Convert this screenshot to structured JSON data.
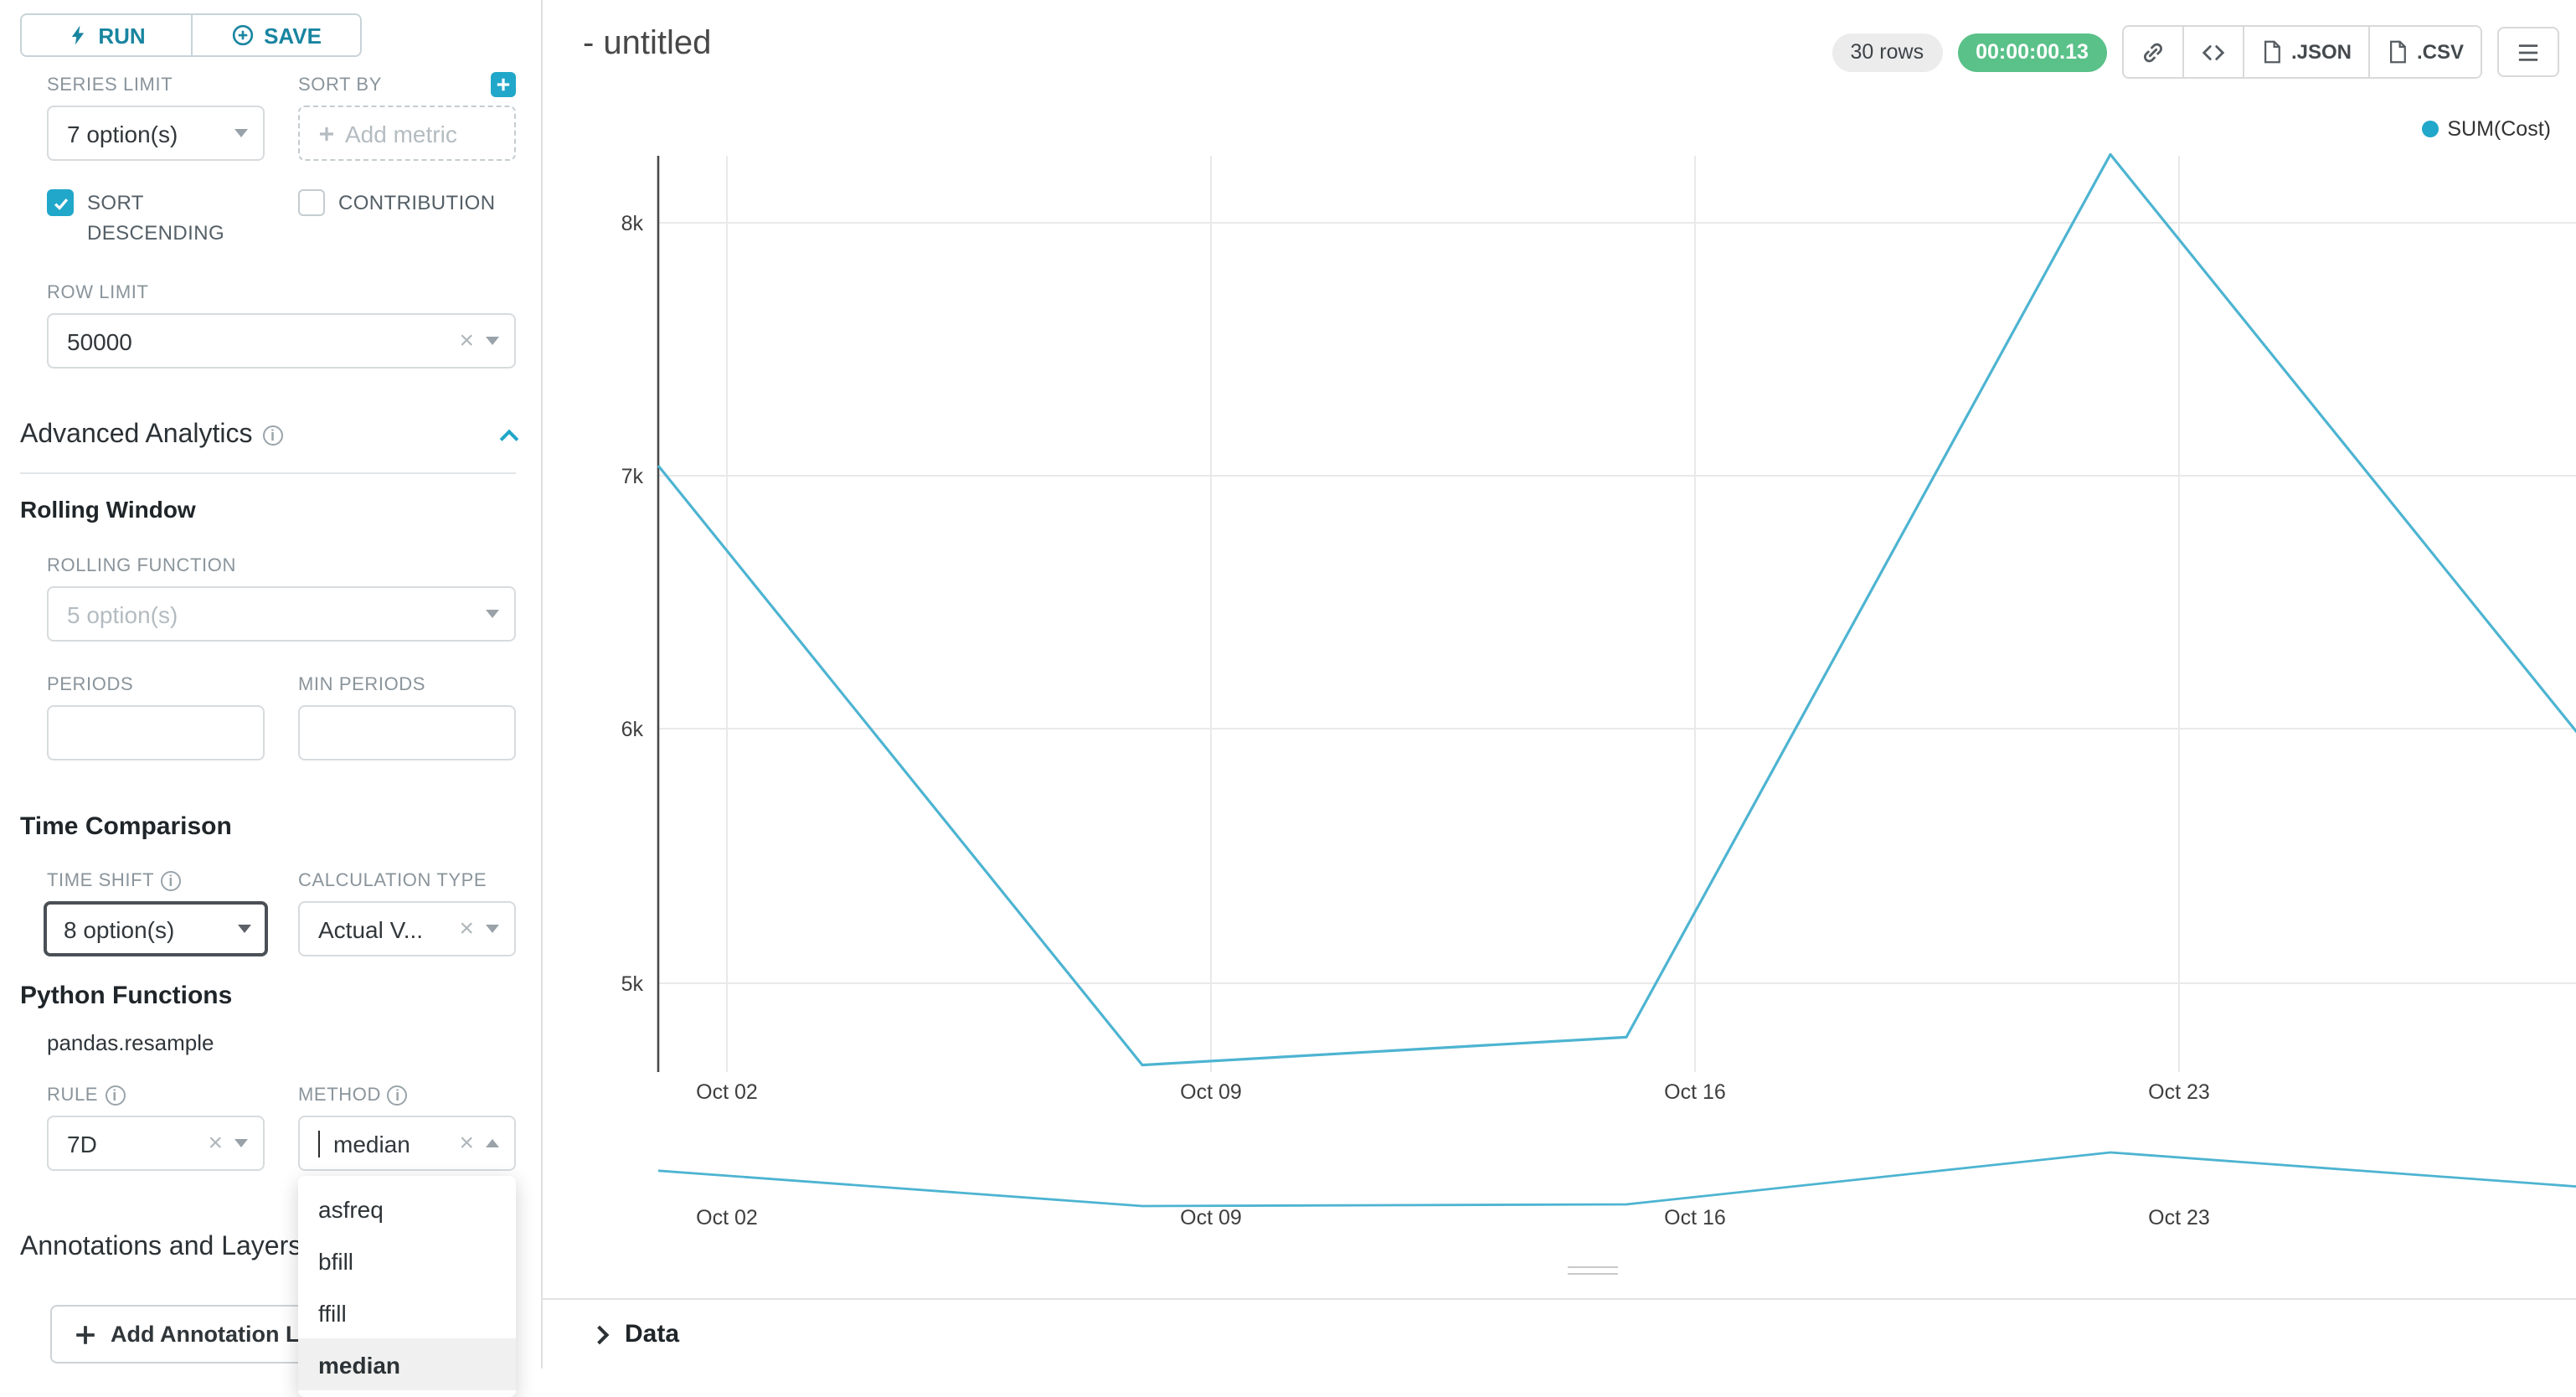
{
  "sidebar": {
    "run_label": "RUN",
    "save_label": "SAVE",
    "series_limit": {
      "label": "SERIES LIMIT",
      "value": "7 option(s)"
    },
    "sort_by": {
      "label": "SORT BY",
      "placeholder": "Add metric"
    },
    "sort_descending_label": "SORT DESCENDING",
    "sort_descending_checked": true,
    "contribution_label": "CONTRIBUTION",
    "contribution_checked": false,
    "row_limit": {
      "label": "ROW LIMIT",
      "value": "50000"
    },
    "advanced_analytics_title": "Advanced Analytics",
    "rolling_window_title": "Rolling Window",
    "rolling_function": {
      "label": "ROLLING FUNCTION",
      "value": "5 option(s)"
    },
    "periods": {
      "label": "PERIODS",
      "value": ""
    },
    "min_periods": {
      "label": "MIN PERIODS",
      "value": ""
    },
    "time_comparison_title": "Time Comparison",
    "time_shift": {
      "label": "TIME SHIFT",
      "value": "8 option(s)"
    },
    "calculation_type": {
      "label": "CALCULATION TYPE",
      "value": "Actual V..."
    },
    "python_functions_title": "Python Functions",
    "pandas_resample_label": "pandas.resample",
    "rule": {
      "label": "RULE",
      "value": "7D"
    },
    "method": {
      "label": "METHOD",
      "value": "median"
    },
    "method_options": [
      "asfreq",
      "bfill",
      "ffill",
      "median"
    ],
    "method_selected": "median",
    "annotations_title": "Annotations and Layers",
    "add_annotation_label": "Add Annotation Layer"
  },
  "header": {
    "title": "- untitled",
    "rows_badge": "30 rows",
    "timer": "00:00:00.13",
    "json_label": ".JSON",
    "csv_label": ".CSV"
  },
  "data_panel": {
    "title": "Data"
  },
  "colors": {
    "accent": "#20a7c9",
    "line": "#4db4d1",
    "timer_green": "#5ac189"
  },
  "chart_data": {
    "type": "line",
    "legend": "SUM(Cost)",
    "legend_position": "top-right",
    "categories": [
      "Oct 02",
      "Oct 09",
      "Oct 16",
      "Oct 23"
    ],
    "y_tick_labels": [
      "8k",
      "7k",
      "6k",
      "5k"
    ],
    "y_ticks": [
      8000,
      7000,
      6000,
      5000
    ],
    "series": [
      {
        "name": "SUM(Cost)",
        "values": [
          7040,
          4670,
          4780,
          8270,
          5900
        ]
      }
    ],
    "ylim": [
      4500,
      8400
    ],
    "grid": true,
    "has_mini_preview": true
  }
}
